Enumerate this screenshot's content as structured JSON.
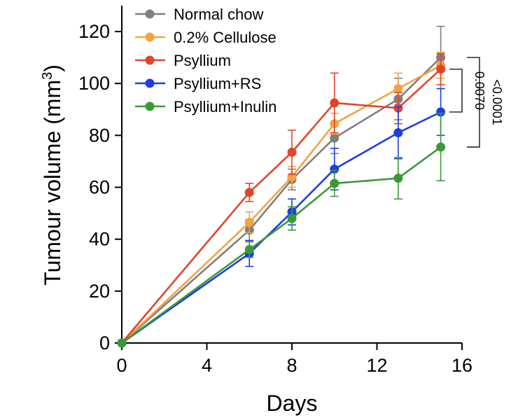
{
  "chart_data": {
    "type": "line",
    "xlabel": "Days",
    "ylabel_main": "Tumour volume (mm",
    "ylabel_sup": "3",
    "ylabel_close": ")",
    "xlim": [
      0,
      16
    ],
    "ylim": [
      0,
      130
    ],
    "xticks": [
      0,
      4,
      8,
      12,
      16
    ],
    "yticks": [
      0,
      20,
      40,
      60,
      80,
      100,
      120
    ],
    "x": [
      0,
      6,
      8,
      10,
      13,
      15
    ],
    "legend_position": "top-left",
    "grid": false,
    "series": [
      {
        "name": "Normal chow",
        "color": "#7f7f7f",
        "values": [
          0,
          43.5,
          63,
          79,
          94,
          110
        ],
        "errors": [
          0,
          4,
          4,
          6,
          8,
          12
        ]
      },
      {
        "name": "0.2% Cellulose",
        "color": "#f4a340",
        "values": [
          0,
          46.5,
          64,
          84.5,
          98,
          107
        ],
        "errors": [
          0,
          4,
          4,
          4,
          6,
          5
        ]
      },
      {
        "name": "Psyllium",
        "color": "#e2442b",
        "values": [
          0,
          58,
          73.5,
          92.5,
          90.5,
          105.5
        ],
        "errors": [
          0,
          3.5,
          8.5,
          11.5,
          6,
          6
        ]
      },
      {
        "name": "Psyllium+RS",
        "color": "#1f3de0",
        "values": [
          0,
          34.5,
          50.5,
          67,
          81,
          89
        ],
        "errors": [
          0,
          5,
          5,
          8,
          10,
          9
        ]
      },
      {
        "name": "Psyllium+Inulin",
        "color": "#3a9a36",
        "values": [
          0,
          36,
          48,
          61.5,
          63.5,
          75.5
        ],
        "errors": [
          0,
          3,
          4.5,
          5,
          8,
          13
        ]
      }
    ],
    "annotations": [
      {
        "text": "0.0070",
        "from_series": "Psyllium",
        "to_series": "Psyllium+RS",
        "at_x": 15
      },
      {
        "text": "<0.0001",
        "from_series": "Normal chow",
        "to_series": "Psyllium+Inulin",
        "at_x": 15
      }
    ]
  }
}
